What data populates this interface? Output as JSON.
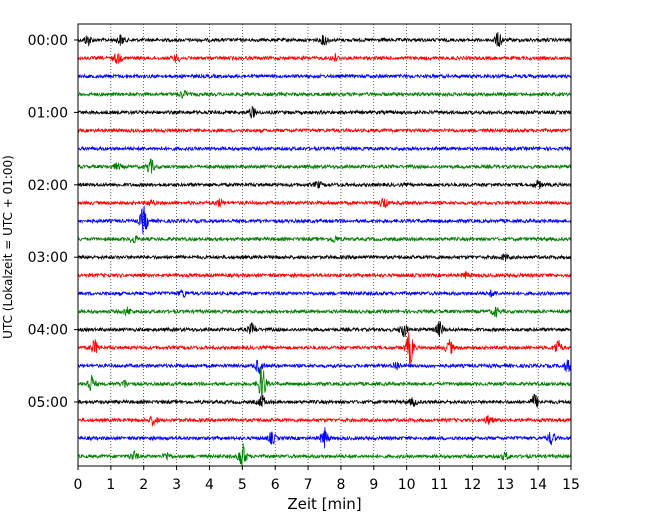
{
  "chart_data": {
    "type": "line",
    "title": "",
    "xlabel": "Zeit  [min]",
    "ylabel": "UTC (Lokalzeit = UTC + 01:00)",
    "xlim": [
      0,
      15
    ],
    "x_ticks": [
      0,
      1,
      2,
      3,
      4,
      5,
      6,
      7,
      8,
      9,
      10,
      11,
      12,
      13,
      14,
      15
    ],
    "x_tick_labels": [
      "0",
      "1",
      "2",
      "3",
      "4",
      "5",
      "6",
      "7",
      "8",
      "9",
      "10",
      "11",
      "12",
      "13",
      "14",
      "15"
    ],
    "y_ticks": [
      "00:00",
      "01:00",
      "02:00",
      "03:00",
      "04:00",
      "05:00"
    ],
    "grid": "vertical dotted",
    "trace_colors": [
      "#000000",
      "#ff0000",
      "#0000ff",
      "#008000"
    ],
    "trace_interval_minutes": 15,
    "traces": [
      {
        "start": "00:00",
        "color": "#000000",
        "events": [
          [
            0.3,
            0.35
          ],
          [
            1.3,
            0.35
          ],
          [
            7.5,
            0.35
          ],
          [
            12.8,
            0.5
          ]
        ]
      },
      {
        "start": "00:15",
        "color": "#ff0000",
        "events": [
          [
            1.2,
            0.35
          ],
          [
            3.0,
            0.25
          ],
          [
            7.8,
            0.25
          ]
        ]
      },
      {
        "start": "00:30",
        "color": "#0000ff",
        "events": []
      },
      {
        "start": "00:45",
        "color": "#008000",
        "events": [
          [
            3.2,
            0.25
          ]
        ]
      },
      {
        "start": "01:00",
        "color": "#000000",
        "events": [
          [
            5.3,
            0.35
          ]
        ]
      },
      {
        "start": "01:15",
        "color": "#ff0000",
        "events": []
      },
      {
        "start": "01:30",
        "color": "#0000ff",
        "events": []
      },
      {
        "start": "01:45",
        "color": "#008000",
        "events": [
          [
            2.2,
            0.5
          ],
          [
            1.2,
            0.2
          ]
        ]
      },
      {
        "start": "02:00",
        "color": "#000000",
        "events": [
          [
            7.3,
            0.2
          ],
          [
            14.0,
            0.25
          ]
        ]
      },
      {
        "start": "02:15",
        "color": "#ff0000",
        "events": [
          [
            9.3,
            0.35
          ],
          [
            4.3,
            0.25
          ],
          [
            2.2,
            0.2
          ]
        ]
      },
      {
        "start": "02:30",
        "color": "#0000ff",
        "events": [
          [
            2.0,
            1.0
          ]
        ]
      },
      {
        "start": "02:45",
        "color": "#008000",
        "events": [
          [
            1.7,
            0.25
          ],
          [
            7.8,
            0.2
          ]
        ]
      },
      {
        "start": "03:00",
        "color": "#000000",
        "events": [
          [
            13.0,
            0.2
          ]
        ]
      },
      {
        "start": "03:15",
        "color": "#ff0000",
        "events": [
          [
            11.8,
            0.2
          ]
        ]
      },
      {
        "start": "03:30",
        "color": "#0000ff",
        "events": [
          [
            3.2,
            0.25
          ],
          [
            12.6,
            0.2
          ]
        ]
      },
      {
        "start": "03:45",
        "color": "#008000",
        "events": [
          [
            1.5,
            0.25
          ],
          [
            12.7,
            0.3
          ]
        ]
      },
      {
        "start": "04:00",
        "color": "#000000",
        "events": [
          [
            5.3,
            0.4
          ],
          [
            9.9,
            0.5
          ],
          [
            11.0,
            0.5
          ]
        ]
      },
      {
        "start": "04:15",
        "color": "#ff0000",
        "events": [
          [
            0.5,
            0.5
          ],
          [
            10.1,
            1.2
          ],
          [
            11.3,
            0.5
          ],
          [
            14.6,
            0.5
          ]
        ]
      },
      {
        "start": "04:30",
        "color": "#0000ff",
        "events": [
          [
            5.5,
            0.5
          ],
          [
            9.7,
            0.3
          ],
          [
            14.9,
            0.4
          ]
        ]
      },
      {
        "start": "04:45",
        "color": "#008000",
        "events": [
          [
            0.4,
            0.6
          ],
          [
            5.6,
            1.3
          ],
          [
            1.4,
            0.25
          ]
        ]
      },
      {
        "start": "05:00",
        "color": "#000000",
        "events": [
          [
            5.6,
            0.4
          ],
          [
            13.9,
            0.5
          ],
          [
            10.2,
            0.25
          ]
        ]
      },
      {
        "start": "05:15",
        "color": "#ff0000",
        "events": [
          [
            2.3,
            0.35
          ],
          [
            12.5,
            0.3
          ]
        ]
      },
      {
        "start": "05:30",
        "color": "#0000ff",
        "events": [
          [
            5.9,
            0.4
          ],
          [
            7.5,
            0.7
          ],
          [
            14.4,
            0.45
          ]
        ]
      },
      {
        "start": "05:45",
        "color": "#008000",
        "events": [
          [
            5.0,
            0.9
          ],
          [
            1.7,
            0.3
          ],
          [
            2.7,
            0.25
          ],
          [
            13.0,
            0.25
          ]
        ]
      }
    ]
  }
}
